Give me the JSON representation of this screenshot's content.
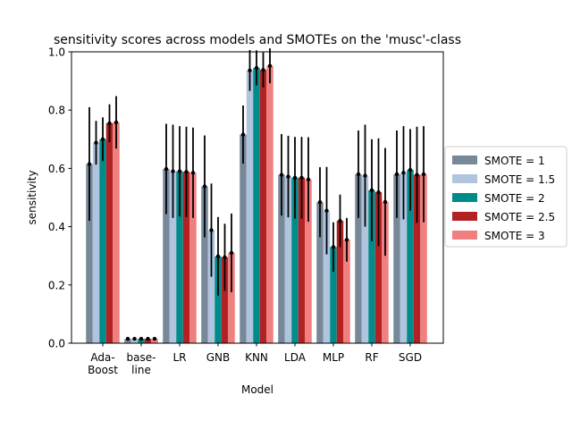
{
  "chart_data": {
    "type": "bar",
    "title": "sensitivity scores across models and SMOTEs on the 'musc'-class",
    "xlabel": "Model",
    "ylabel": "sensitivity",
    "ylim": [
      0,
      1.0
    ],
    "yticks": [
      "0.0",
      "0.2",
      "0.4",
      "0.6",
      "0.8",
      "1.0"
    ],
    "categories": [
      [
        "Ada-",
        "Boost"
      ],
      [
        "base-",
        "line"
      ],
      [
        "LR"
      ],
      [
        "GNB"
      ],
      [
        "KNN"
      ],
      [
        "LDA"
      ],
      [
        "MLP"
      ],
      [
        "RF"
      ],
      [
        "SGD"
      ]
    ],
    "grid": false,
    "legend_position": "right, outside plot",
    "error_bars": true,
    "series": [
      {
        "name": "SMOTE = 1",
        "color": "#778899",
        "values": [
          0.615,
          0.015,
          0.598,
          0.538,
          0.716,
          0.578,
          0.484,
          0.58,
          0.58
        ],
        "errors": [
          0.195,
          0.004,
          0.155,
          0.175,
          0.1,
          0.14,
          0.12,
          0.15,
          0.15
        ]
      },
      {
        "name": "SMOTE = 1.5",
        "color": "#b0c4de",
        "values": [
          0.688,
          0.015,
          0.59,
          0.388,
          0.936,
          0.572,
          0.455,
          0.575,
          0.585
        ],
        "errors": [
          0.075,
          0.004,
          0.16,
          0.16,
          0.07,
          0.14,
          0.15,
          0.175,
          0.16
        ]
      },
      {
        "name": "SMOTE = 2",
        "color": "#008b8b",
        "values": [
          0.7,
          0.015,
          0.59,
          0.298,
          0.945,
          0.568,
          0.33,
          0.525,
          0.595
        ],
        "errors": [
          0.075,
          0.004,
          0.155,
          0.135,
          0.06,
          0.14,
          0.085,
          0.175,
          0.14
        ]
      },
      {
        "name": "SMOTE = 2.5",
        "color": "#b22222",
        "values": [
          0.755,
          0.015,
          0.588,
          0.295,
          0.938,
          0.568,
          0.42,
          0.518,
          0.578
        ],
        "errors": [
          0.065,
          0.004,
          0.155,
          0.115,
          0.06,
          0.14,
          0.09,
          0.185,
          0.165
        ]
      },
      {
        "name": "SMOTE = 3",
        "color": "#f08080",
        "values": [
          0.758,
          0.015,
          0.585,
          0.31,
          0.952,
          0.562,
          0.355,
          0.485,
          0.58
        ],
        "errors": [
          0.09,
          0.004,
          0.155,
          0.135,
          0.06,
          0.145,
          0.075,
          0.185,
          0.165
        ]
      }
    ]
  }
}
